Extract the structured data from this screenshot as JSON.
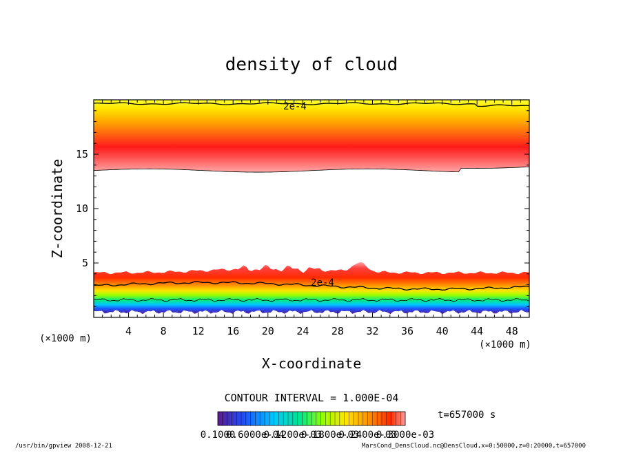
{
  "chart_data": {
    "type": "heatmap",
    "title": "density of cloud",
    "xlabel": "X-coordinate",
    "ylabel": "Z-coordinate",
    "x_unit": "(×1000 m)",
    "y_unit": "(×1000 m)",
    "xlim": [
      0,
      50
    ],
    "ylim": [
      0,
      20
    ],
    "x_ticks": [
      4,
      8,
      12,
      16,
      20,
      24,
      28,
      32,
      36,
      40,
      44,
      48
    ],
    "y_ticks": [
      5,
      10,
      15
    ],
    "contour_labels": [
      "2e-4",
      "2e-4"
    ],
    "contour_interval_text": "CONTOUR INTERVAL = 1.000E-04",
    "time_text": "t=657000 s",
    "colorbar_labels": [
      "0.1000",
      "0.6000e-04",
      "0.1200e-03",
      "0.1800e-03",
      "0.2400e-03",
      "0.3000e-03"
    ],
    "upper_layer": {
      "bottom_km": 13.5,
      "peak_km": 15.5,
      "top_km": 20
    },
    "lower_layer": {
      "bottom_km": 0.5,
      "top_km": 4.5
    },
    "palette": [
      "#5a1a8c",
      "#1e50ff",
      "#00c8ff",
      "#00e68c",
      "#96ff00",
      "#ffe600",
      "#ff9600",
      "#ff2a00",
      "#ff9a9a"
    ]
  },
  "footer": {
    "left": "/usr/bin/gpview  2008-12-21",
    "right": "MarsCond_DensCloud.nc@DensCloud,x=0:50000,z=0:20000,t=657000"
  }
}
